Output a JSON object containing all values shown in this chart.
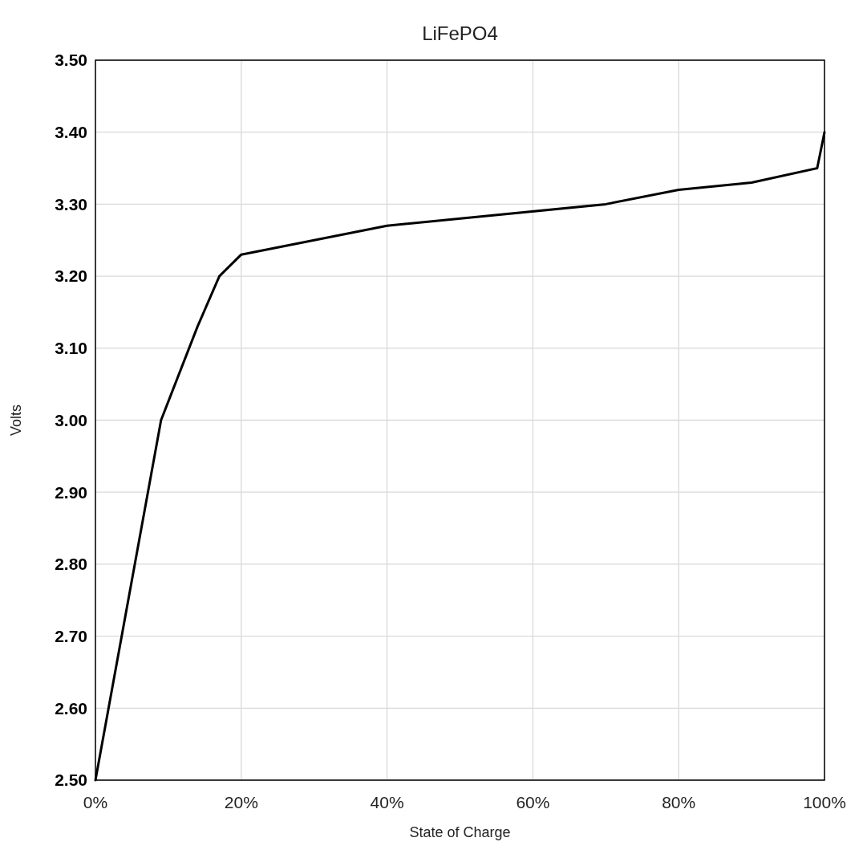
{
  "chart_data": {
    "type": "line",
    "title": "LiFePO4",
    "xlabel": "State of Charge",
    "ylabel": "Volts",
    "x": [
      0,
      9,
      14,
      17,
      20,
      40,
      70,
      80,
      90,
      99,
      100
    ],
    "series": [
      {
        "color": "#000000",
        "values": [
          2.5,
          3.0,
          3.13,
          3.2,
          3.23,
          3.27,
          3.3,
          3.32,
          3.33,
          3.35,
          3.4
        ]
      }
    ],
    "xlim": [
      0,
      100
    ],
    "xticks": [
      {
        "value": 0,
        "label": "0%"
      },
      {
        "value": 20,
        "label": "20%"
      },
      {
        "value": 40,
        "label": "40%"
      },
      {
        "value": 60,
        "label": "60%"
      },
      {
        "value": 80,
        "label": "80%"
      },
      {
        "value": 100,
        "label": "100%"
      }
    ],
    "ylim": [
      2.5,
      3.5
    ],
    "yticks": [
      {
        "value": 2.5,
        "label": "2.50"
      },
      {
        "value": 2.6,
        "label": "2.60"
      },
      {
        "value": 2.7,
        "label": "2.70"
      },
      {
        "value": 2.8,
        "label": "2.80"
      },
      {
        "value": 2.9,
        "label": "2.90"
      },
      {
        "value": 3.0,
        "label": "3.00"
      },
      {
        "value": 3.1,
        "label": "3.10"
      },
      {
        "value": 3.2,
        "label": "3.20"
      },
      {
        "value": 3.3,
        "label": "3.30"
      },
      {
        "value": 3.4,
        "label": "3.40"
      },
      {
        "value": 3.5,
        "label": "3.50"
      }
    ],
    "grid": true,
    "marker": "none",
    "line_style": "solid"
  }
}
